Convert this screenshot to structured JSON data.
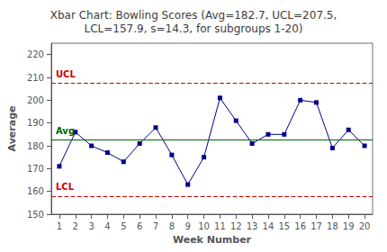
{
  "chart_data": {
    "type": "line",
    "title": "Xbar Chart: Bowling Scores (Avg=182.7, UCL=207.5,\nLCL=157.9, s=14.3, for subgroups 1-20)",
    "xlabel": "Week Number",
    "ylabel": "Average",
    "x": [
      1,
      2,
      3,
      4,
      5,
      6,
      7,
      8,
      9,
      10,
      11,
      12,
      13,
      14,
      15,
      16,
      17,
      18,
      19,
      20
    ],
    "values": [
      171,
      186,
      180,
      177,
      173,
      181,
      188,
      176,
      163,
      175,
      201,
      191,
      181,
      185,
      185,
      200,
      199,
      179,
      187,
      180
    ],
    "color": "#00008B",
    "marker": "square",
    "xlim": [
      0.5,
      20.5
    ],
    "xticks": [
      1,
      2,
      3,
      4,
      5,
      6,
      7,
      8,
      9,
      10,
      11,
      12,
      13,
      14,
      15,
      16,
      17,
      18,
      19,
      20
    ],
    "ylim": [
      150,
      225
    ],
    "yticks": [
      150,
      160,
      170,
      180,
      190,
      200,
      210,
      220
    ],
    "grid": false,
    "reference_lines": [
      {
        "value": 182.7,
        "label": "Avg",
        "color": "#006400",
        "line_style": "solid"
      },
      {
        "value": 207.5,
        "label": "UCL",
        "color": "#CC0000",
        "line_style": "dashed"
      },
      {
        "value": 157.9,
        "label": "LCL",
        "color": "#CC0000",
        "line_style": "dashed"
      }
    ]
  }
}
